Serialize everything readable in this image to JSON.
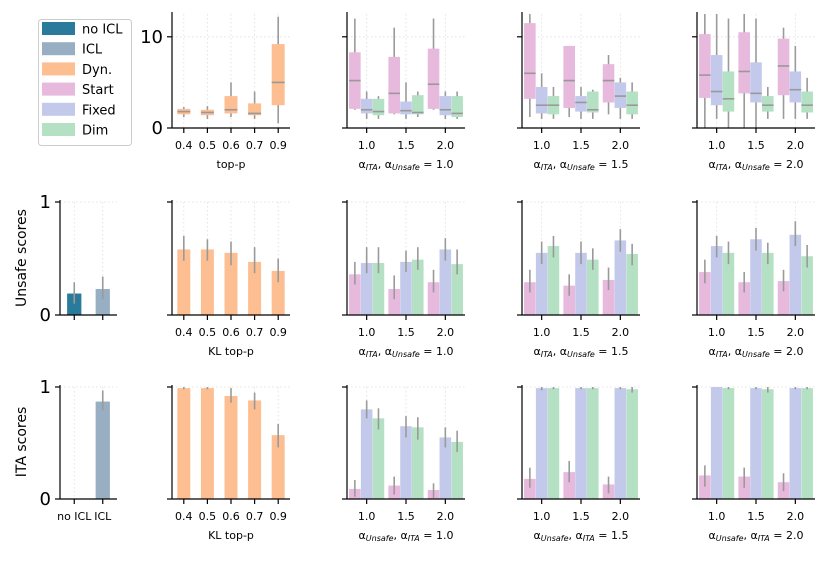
{
  "colors": {
    "no ICL": "#2a7b9b",
    "ICL": "#98afc3",
    "Dyn.": "#fdbe92",
    "Start": "#e6b9dd",
    "Fixed": "#c3c9ea",
    "Dim": "#b4e0c4",
    "median": "#999999",
    "whisker": "#9a9a9a",
    "grid": "#dddddd"
  },
  "legend": [
    "no ICL",
    "ICL",
    "Dyn.",
    "Start",
    "Fixed",
    "Dim"
  ],
  "ylabels": {
    "row2": "Unsafe scores",
    "row3": "ITA scores"
  },
  "chart_data": [
    {
      "id": "r1c2",
      "type": "box",
      "xlabel": "top-p",
      "categories": [
        "0.4",
        "0.5",
        "0.6",
        "0.7",
        "0.9"
      ],
      "ylim": [
        0,
        12.5
      ],
      "yticks": [
        0,
        10
      ],
      "series": [
        {
          "name": "Dyn.",
          "boxes": [
            {
              "lo": 1.2,
              "q1": 1.5,
              "med": 1.8,
              "q3": 2.1,
              "hi": 2.3
            },
            {
              "lo": 1.0,
              "q1": 1.4,
              "med": 1.7,
              "q3": 2.0,
              "hi": 2.4
            },
            {
              "lo": 1.2,
              "q1": 1.6,
              "med": 2.0,
              "q3": 3.5,
              "hi": 5.0
            },
            {
              "lo": 1.0,
              "q1": 1.4,
              "med": 1.6,
              "q3": 2.7,
              "hi": 4.0
            },
            {
              "lo": 0.5,
              "q1": 2.5,
              "med": 5.0,
              "q3": 9.2,
              "hi": 12.2
            }
          ]
        }
      ]
    },
    {
      "id": "r1c3",
      "type": "box",
      "xlabel": "αITA, αUnsafe = 1.0",
      "categories": [
        "1.0",
        "1.5",
        "2.0"
      ],
      "ylim": [
        0,
        12.5
      ],
      "yticks": [
        0,
        10
      ],
      "series": [
        {
          "name": "Start",
          "boxes": [
            {
              "lo": 2.0,
              "q1": 2.1,
              "med": 5.2,
              "q3": 8.3,
              "hi": 12.0
            },
            {
              "lo": 1.5,
              "q1": 1.6,
              "med": 3.8,
              "q3": 7.8,
              "hi": 11.0
            },
            {
              "lo": 2.0,
              "q1": 2.1,
              "med": 4.8,
              "q3": 8.7,
              "hi": 12.0
            }
          ]
        },
        {
          "name": "Fixed",
          "boxes": [
            {
              "lo": 1.0,
              "q1": 1.6,
              "med": 2.0,
              "q3": 3.2,
              "hi": 4.0
            },
            {
              "lo": 1.0,
              "q1": 1.5,
              "med": 1.9,
              "q3": 2.9,
              "hi": 5.0
            },
            {
              "lo": 1.0,
              "q1": 1.4,
              "med": 2.0,
              "q3": 3.5,
              "hi": 4.0
            }
          ]
        },
        {
          "name": "Dim",
          "boxes": [
            {
              "lo": 1.0,
              "q1": 1.4,
              "med": 1.8,
              "q3": 3.2,
              "hi": 3.5
            },
            {
              "lo": 1.2,
              "q1": 1.5,
              "med": 1.7,
              "q3": 3.6,
              "hi": 4.0
            },
            {
              "lo": 1.0,
              "q1": 1.2,
              "med": 1.6,
              "q3": 3.5,
              "hi": 4.0
            }
          ]
        }
      ]
    },
    {
      "id": "r1c4",
      "type": "box",
      "xlabel": "αITA, αUnsafe = 1.5",
      "categories": [
        "1.0",
        "1.5",
        "2.0"
      ],
      "ylim": [
        0,
        12.5
      ],
      "yticks": [
        0,
        10
      ],
      "series": [
        {
          "name": "Start",
          "boxes": [
            {
              "lo": 1.2,
              "q1": 3.2,
              "med": 6.0,
              "q3": 11.5,
              "hi": 12.5
            },
            {
              "lo": 1.2,
              "q1": 2.2,
              "med": 5.2,
              "q3": 9.0,
              "hi": 9.0
            },
            {
              "lo": 1.5,
              "q1": 2.8,
              "med": 5.2,
              "q3": 7.0,
              "hi": 8.0
            }
          ]
        },
        {
          "name": "Fixed",
          "boxes": [
            {
              "lo": 1.0,
              "q1": 1.6,
              "med": 2.5,
              "q3": 4.5,
              "hi": 6.0
            },
            {
              "lo": 1.0,
              "q1": 1.8,
              "med": 2.8,
              "q3": 3.5,
              "hi": 4.5
            },
            {
              "lo": 1.0,
              "q1": 2.2,
              "med": 3.5,
              "q3": 5.0,
              "hi": 5.5
            }
          ]
        },
        {
          "name": "Dim",
          "boxes": [
            {
              "lo": 1.0,
              "q1": 1.5,
              "med": 2.5,
              "q3": 3.5,
              "hi": 4.5
            },
            {
              "lo": 1.0,
              "q1": 1.7,
              "med": 2.0,
              "q3": 4.0,
              "hi": 4.2
            },
            {
              "lo": 1.0,
              "q1": 1.5,
              "med": 2.5,
              "q3": 4.0,
              "hi": 5.0
            }
          ]
        }
      ]
    },
    {
      "id": "r1c5",
      "type": "box",
      "xlabel": "αITA, αUnsafe = 2.0",
      "categories": [
        "1.0",
        "1.5",
        "2.0"
      ],
      "ylim": [
        0,
        12.5
      ],
      "yticks": [
        0,
        10
      ],
      "series": [
        {
          "name": "Start",
          "boxes": [
            {
              "lo": 0.0,
              "q1": 3.3,
              "med": 5.8,
              "q3": 10.3,
              "hi": 12.5
            },
            {
              "lo": 0.0,
              "q1": 3.8,
              "med": 6.2,
              "q3": 10.5,
              "hi": 12.5
            },
            {
              "lo": 1.0,
              "q1": 3.6,
              "med": 6.8,
              "q3": 9.8,
              "hi": 11.0
            }
          ]
        },
        {
          "name": "Fixed",
          "boxes": [
            {
              "lo": 1.0,
              "q1": 2.5,
              "med": 4.0,
              "q3": 8.0,
              "hi": 12.5
            },
            {
              "lo": 0.0,
              "q1": 2.8,
              "med": 3.8,
              "q3": 7.2,
              "hi": 12.0
            },
            {
              "lo": 1.0,
              "q1": 2.8,
              "med": 4.2,
              "q3": 6.2,
              "hi": 9.0
            }
          ]
        },
        {
          "name": "Dim",
          "boxes": [
            {
              "lo": 0.0,
              "q1": 1.8,
              "med": 3.2,
              "q3": 6.2,
              "hi": 12.0
            },
            {
              "lo": 1.0,
              "q1": 1.8,
              "med": 2.5,
              "q3": 3.5,
              "hi": 4.5
            },
            {
              "lo": 1.0,
              "q1": 1.7,
              "med": 2.5,
              "q3": 4.0,
              "hi": 5.5
            }
          ]
        }
      ]
    },
    {
      "id": "r2c1",
      "type": "bar",
      "xlabel": "",
      "categories": [
        "no ICL",
        "ICL"
      ],
      "showTickLabels": false,
      "ylim": [
        0,
        1
      ],
      "yticks": [
        0,
        1
      ],
      "series": [
        {
          "colors": [
            "no ICL",
            "ICL"
          ],
          "values": [
            0.19,
            0.23
          ],
          "err": [
            [
              0.1,
              0.29
            ],
            [
              0.14,
              0.34
            ]
          ]
        }
      ]
    },
    {
      "id": "r2c2",
      "type": "bar",
      "xlabel": "KL top-p",
      "categories": [
        "0.4",
        "0.5",
        "0.6",
        "0.7",
        "0.9"
      ],
      "ylim": [
        0,
        1
      ],
      "yticks": [
        0,
        1
      ],
      "series": [
        {
          "name": "Dyn.",
          "values": [
            0.58,
            0.58,
            0.55,
            0.47,
            0.39
          ],
          "err": [
            [
              0.48,
              0.7
            ],
            [
              0.48,
              0.67
            ],
            [
              0.44,
              0.65
            ],
            [
              0.37,
              0.6
            ],
            [
              0.29,
              0.5
            ]
          ]
        }
      ]
    },
    {
      "id": "r2c3",
      "type": "bar",
      "xlabel": "αITA, αUnsafe = 1.0",
      "categories": [
        "1.0",
        "1.5",
        "2.0"
      ],
      "ylim": [
        0,
        1
      ],
      "yticks": [
        0,
        1
      ],
      "series": [
        {
          "name": "Start",
          "values": [
            0.36,
            0.23,
            0.29
          ],
          "err": [
            [
              0.27,
              0.47
            ],
            [
              0.14,
              0.35
            ],
            [
              0.2,
              0.4
            ]
          ]
        },
        {
          "name": "Fixed",
          "values": [
            0.46,
            0.47,
            0.58
          ],
          "err": [
            [
              0.37,
              0.6
            ],
            [
              0.38,
              0.57
            ],
            [
              0.48,
              0.68
            ]
          ]
        },
        {
          "name": "Dim",
          "values": [
            0.46,
            0.49,
            0.45
          ],
          "err": [
            [
              0.37,
              0.6
            ],
            [
              0.4,
              0.6
            ],
            [
              0.36,
              0.58
            ]
          ]
        }
      ]
    },
    {
      "id": "r2c4",
      "type": "bar",
      "xlabel": "αITA, αUnsafe = 1.5",
      "categories": [
        "1.0",
        "1.5",
        "2.0"
      ],
      "ylim": [
        0,
        1
      ],
      "yticks": [
        0,
        1
      ],
      "series": [
        {
          "name": "Start",
          "values": [
            0.29,
            0.26,
            0.31
          ],
          "err": [
            [
              0.2,
              0.4
            ],
            [
              0.17,
              0.36
            ],
            [
              0.22,
              0.42
            ]
          ]
        },
        {
          "name": "Fixed",
          "values": [
            0.55,
            0.55,
            0.66
          ],
          "err": [
            [
              0.45,
              0.65
            ],
            [
              0.45,
              0.65
            ],
            [
              0.56,
              0.76
            ]
          ]
        },
        {
          "name": "Dim",
          "values": [
            0.61,
            0.49,
            0.54
          ],
          "err": [
            [
              0.51,
              0.7
            ],
            [
              0.4,
              0.59
            ],
            [
              0.44,
              0.63
            ]
          ]
        }
      ]
    },
    {
      "id": "r2c5",
      "type": "bar",
      "xlabel": "αITA, αUnsafe = 2.0",
      "categories": [
        "1.0",
        "1.5",
        "2.0"
      ],
      "ylim": [
        0,
        1
      ],
      "yticks": [
        0,
        1
      ],
      "series": [
        {
          "name": "Start",
          "values": [
            0.38,
            0.29,
            0.3
          ],
          "err": [
            [
              0.28,
              0.49
            ],
            [
              0.2,
              0.38
            ],
            [
              0.21,
              0.4
            ]
          ]
        },
        {
          "name": "Fixed",
          "values": [
            0.61,
            0.67,
            0.71
          ],
          "err": [
            [
              0.51,
              0.7
            ],
            [
              0.57,
              0.77
            ],
            [
              0.61,
              0.83
            ]
          ]
        },
        {
          "name": "Dim",
          "values": [
            0.55,
            0.55,
            0.52
          ],
          "err": [
            [
              0.45,
              0.65
            ],
            [
              0.45,
              0.64
            ],
            [
              0.42,
              0.62
            ]
          ]
        }
      ]
    },
    {
      "id": "r3c1",
      "type": "bar",
      "xlabel": "",
      "categories": [
        "no ICL",
        "ICL"
      ],
      "showTickLabels": true,
      "ylim": [
        0,
        1
      ],
      "yticks": [
        0,
        1
      ],
      "series": [
        {
          "colors": [
            "no ICL",
            "ICL"
          ],
          "values": [
            0.0,
            0.87
          ],
          "err": [
            null,
            [
              0.79,
              0.97
            ]
          ]
        }
      ]
    },
    {
      "id": "r3c2",
      "type": "bar",
      "xlabel": "KL top-p",
      "categories": [
        "0.4",
        "0.5",
        "0.6",
        "0.7",
        "0.9"
      ],
      "ylim": [
        0,
        1
      ],
      "yticks": [
        0,
        1
      ],
      "series": [
        {
          "name": "Dyn.",
          "values": [
            0.99,
            0.99,
            0.92,
            0.88,
            0.57
          ],
          "err": [
            [
              0.98,
              1.0
            ],
            [
              0.98,
              1.0
            ],
            [
              0.86,
              0.99
            ],
            [
              0.8,
              0.95
            ],
            [
              0.46,
              0.67
            ]
          ]
        }
      ]
    },
    {
      "id": "r3c3",
      "type": "bar",
      "xlabel": "αUnsafe, αITA = 1.0",
      "categories": [
        "1.0",
        "1.5",
        "2.0"
      ],
      "ylim": [
        0,
        1
      ],
      "yticks": [
        0,
        1
      ],
      "series": [
        {
          "name": "Start",
          "values": [
            0.09,
            0.12,
            0.08
          ],
          "err": [
            [
              0.02,
              0.17
            ],
            [
              0.04,
              0.2
            ],
            [
              0.01,
              0.14
            ]
          ]
        },
        {
          "name": "Fixed",
          "values": [
            0.8,
            0.65,
            0.55
          ],
          "err": [
            [
              0.72,
              0.88
            ],
            [
              0.55,
              0.74
            ],
            [
              0.46,
              0.64
            ]
          ]
        },
        {
          "name": "Dim",
          "values": [
            0.72,
            0.64,
            0.51
          ],
          "err": [
            [
              0.62,
              0.81
            ],
            [
              0.53,
              0.73
            ],
            [
              0.42,
              0.61
            ]
          ]
        }
      ]
    },
    {
      "id": "r3c4",
      "type": "bar",
      "xlabel": "αUnsafe, αITA = 1.5",
      "categories": [
        "1.0",
        "1.5",
        "2.0"
      ],
      "ylim": [
        0,
        1
      ],
      "yticks": [
        0,
        1
      ],
      "series": [
        {
          "name": "Start",
          "values": [
            0.18,
            0.24,
            0.13
          ],
          "err": [
            [
              0.1,
              0.28
            ],
            [
              0.15,
              0.34
            ],
            [
              0.05,
              0.2
            ]
          ]
        },
        {
          "name": "Fixed",
          "values": [
            0.99,
            0.99,
            0.99
          ],
          "err": [
            [
              0.97,
              1.0
            ],
            [
              0.98,
              1.0
            ],
            [
              0.98,
              1.0
            ]
          ]
        },
        {
          "name": "Dim",
          "values": [
            0.99,
            0.99,
            0.98
          ],
          "err": [
            [
              0.98,
              1.0
            ],
            [
              0.98,
              1.0
            ],
            [
              0.95,
              1.0
            ]
          ]
        }
      ]
    },
    {
      "id": "r3c5",
      "type": "bar",
      "xlabel": "αUnsafe, αITA = 2.0",
      "categories": [
        "1.0",
        "1.5",
        "2.0"
      ],
      "ylim": [
        0,
        1
      ],
      "yticks": [
        0,
        1
      ],
      "series": [
        {
          "name": "Start",
          "values": [
            0.21,
            0.2,
            0.15
          ],
          "err": [
            [
              0.11,
              0.3
            ],
            [
              0.1,
              0.28
            ],
            [
              0.07,
              0.23
            ]
          ]
        },
        {
          "name": "Fixed",
          "values": [
            1.0,
            0.99,
            0.99
          ],
          "err": [
            null,
            [
              0.98,
              1.0
            ],
            [
              0.98,
              1.0
            ]
          ]
        },
        {
          "name": "Dim",
          "values": [
            0.99,
            0.98,
            0.99
          ],
          "err": [
            [
              0.98,
              1.0
            ],
            [
              0.95,
              1.0
            ],
            [
              0.98,
              1.0
            ]
          ]
        }
      ]
    }
  ]
}
